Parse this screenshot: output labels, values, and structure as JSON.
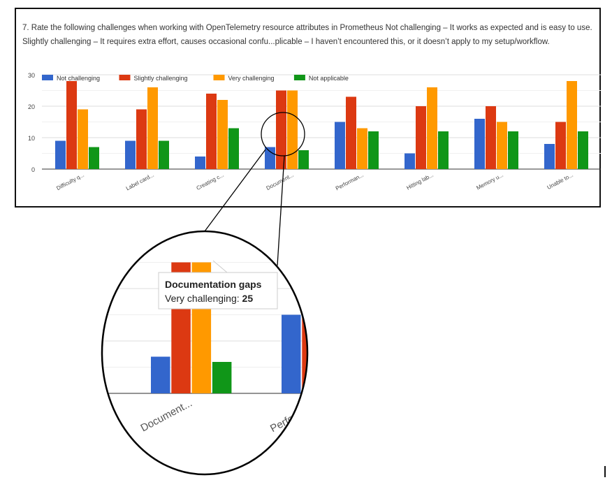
{
  "question": "7. Rate the following challenges when working with OpenTelemetry resource attributes in Prometheus    Not challenging – It works as expected and is easy to use.  Slightly challenging – It requires extra effort, causes occasional confu...plicable – I haven’t encountered this, or it doesn’t apply to my setup/workflow.",
  "chart_data": {
    "type": "bar",
    "categories": [
      "Difficulty q...",
      "Label card...",
      "Creating c...",
      "Document...",
      "Performan...",
      "Hitting lab...",
      "Memory u...",
      "Unable to..."
    ],
    "series": [
      {
        "name": "Not challenging",
        "color": "#3366cc",
        "values": [
          9,
          9,
          4,
          7,
          15,
          5,
          16,
          8
        ]
      },
      {
        "name": "Slightly challenging",
        "color": "#dc3912",
        "values": [
          28,
          19,
          24,
          25,
          23,
          20,
          20,
          15
        ]
      },
      {
        "name": "Very challenging",
        "color": "#ff9900",
        "values": [
          19,
          26,
          22,
          25,
          13,
          26,
          15,
          28
        ]
      },
      {
        "name": "Not applicable",
        "color": "#109618",
        "values": [
          7,
          9,
          13,
          6,
          12,
          12,
          12,
          12
        ]
      }
    ],
    "yticks": [
      0,
      10,
      20,
      30
    ],
    "ylim": [
      0,
      30
    ],
    "grid": true,
    "legend": "top",
    "tooltip": {
      "title": "Documentation gaps",
      "series": "Very challenging:",
      "value": "25"
    }
  }
}
